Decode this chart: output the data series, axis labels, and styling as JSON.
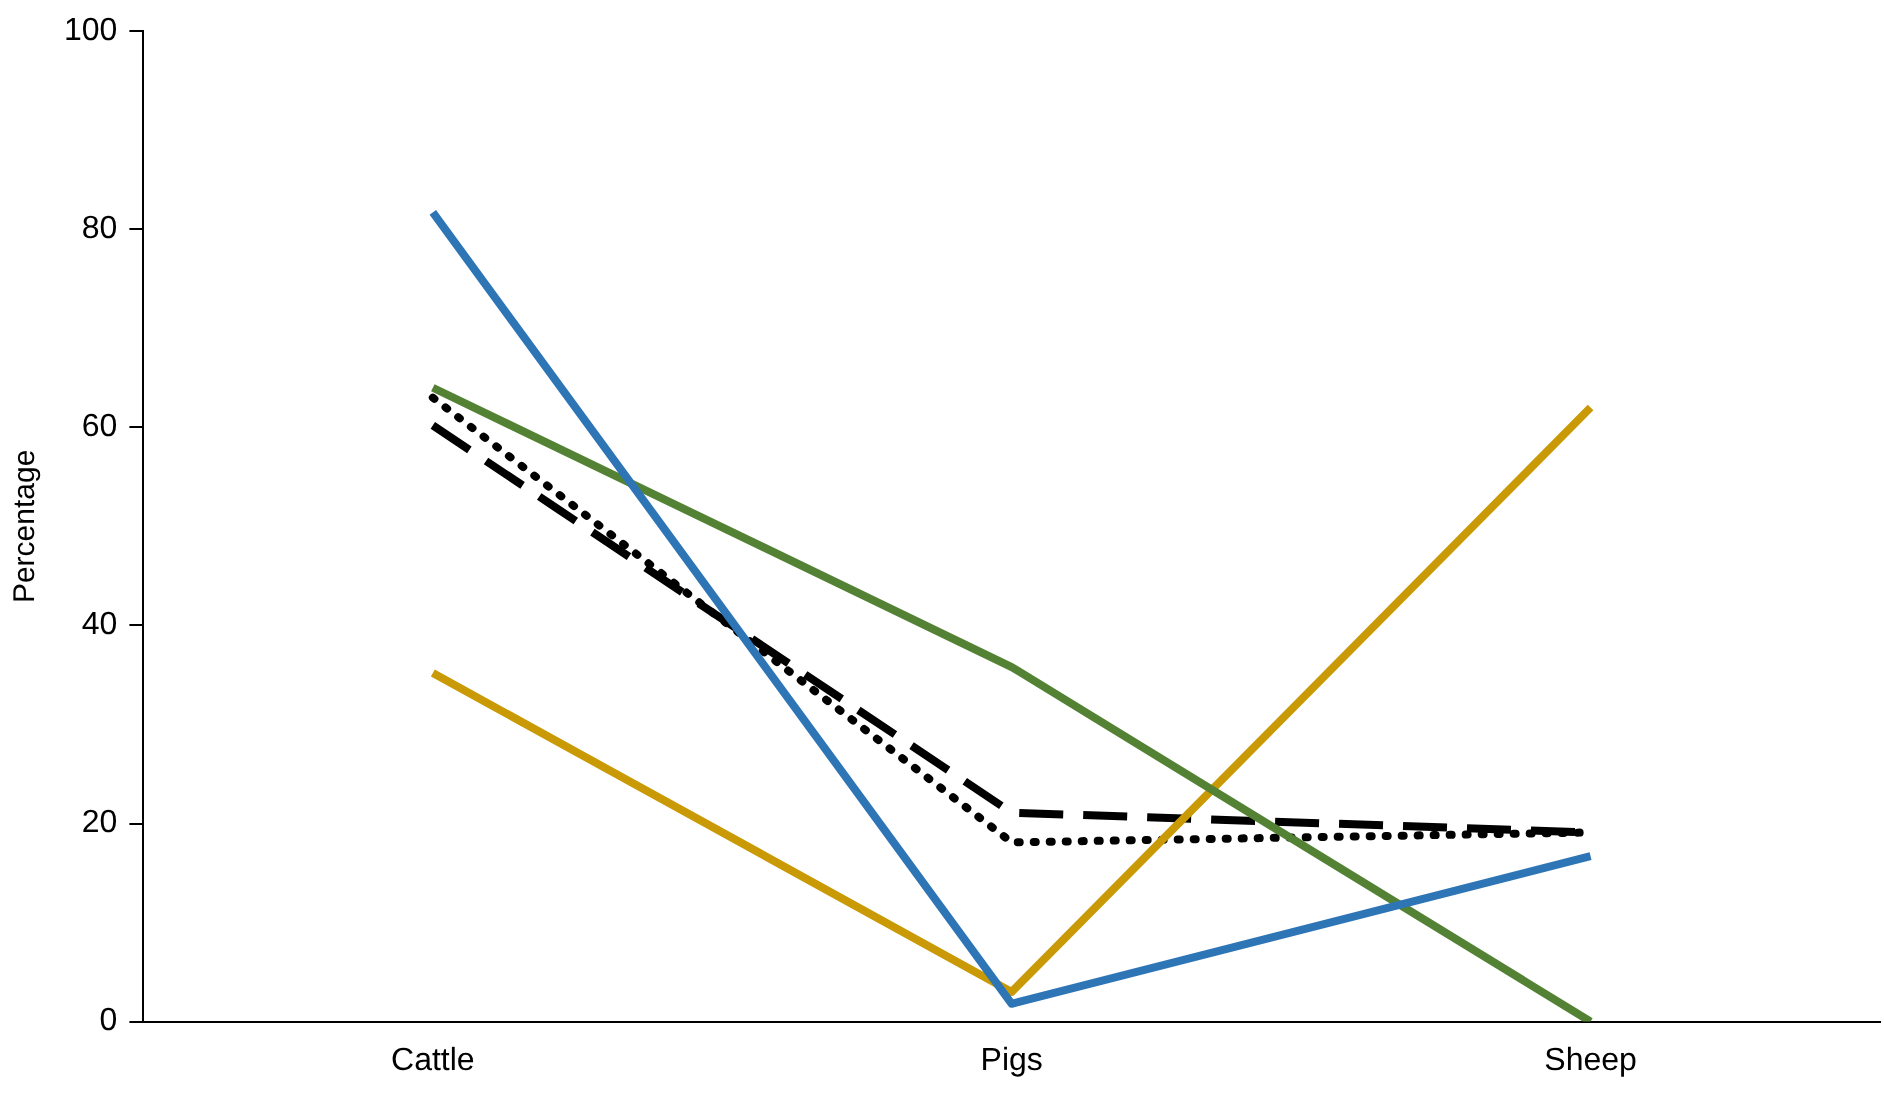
{
  "chart_data": {
    "type": "line",
    "ylabel": "Percentage",
    "categories": [
      "Cattle",
      "Pigs",
      "Sheep"
    ],
    "ylim": [
      0,
      100
    ],
    "yticks": [
      0,
      20,
      40,
      60,
      80,
      100
    ],
    "grid": false,
    "legend": false,
    "marker": "none",
    "series": [
      {
        "color": "#2e75b6",
        "values": [
          81.7,
          1.8,
          16.7
        ],
        "line_style": "solid"
      },
      {
        "color": "#548235",
        "values": [
          64,
          35.8,
          0
        ],
        "line_style": "solid"
      },
      {
        "color": "#c99a06",
        "values": [
          35.2,
          3,
          62
        ],
        "line_style": "solid"
      },
      {
        "color": "#000000",
        "values": [
          60.2,
          21.1,
          19.1
        ],
        "line_style": "dashed"
      },
      {
        "color": "#000000",
        "values": [
          63,
          18.1,
          19.1
        ],
        "line_style": "dotted"
      }
    ]
  }
}
